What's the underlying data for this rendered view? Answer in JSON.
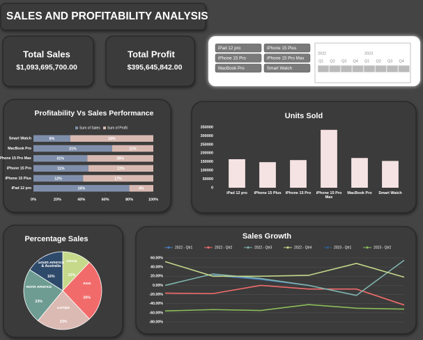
{
  "header": {
    "title": "SALES AND PROFITABILITY ANALYSIS"
  },
  "kpis": [
    {
      "label": "Total Sales",
      "value": "$1,093,695,700.00"
    },
    {
      "label": "Total Profit",
      "value": "$395,645,842.00"
    }
  ],
  "slicers": {
    "products": [
      "iPad 12 pro",
      "iPhone 15 Plus",
      "iPhone 15 Pro",
      "iPhone 15 Pro Max",
      "MacBook Pro",
      "Smart Watch"
    ],
    "timeline": {
      "years": [
        "2022",
        "2023"
      ],
      "quarters": [
        "Q1",
        "Q2",
        "Q3",
        "Q4",
        "Q1",
        "Q2",
        "Q3",
        "Q4"
      ]
    }
  },
  "chart_data": [
    {
      "type": "bar",
      "orientation": "horizontal",
      "stacked": "percent",
      "title": "Profitability Vs Sales Performance",
      "categories": [
        "Smart Watch",
        "MacBook Pro",
        "iPhone 15 Pro Max",
        "iPhone 15 Pro",
        "iPhone 15 Plus",
        "iPad 12 pro"
      ],
      "series": [
        {
          "name": "Sum of Sales",
          "color": "#7f8fab",
          "values": [
            8,
            21,
            31,
            11,
            12,
            16
          ],
          "value_labels": [
            "8%",
            "21%",
            "31%",
            "11%",
            "12%",
            "16%"
          ]
        },
        {
          "name": "Sum of Profit",
          "color": "#d8b9b1",
          "values": [
            18,
            11,
            38,
            13,
            17,
            4
          ],
          "value_labels": [
            "18%",
            "11%",
            "38%",
            "13%",
            "17%",
            "4%"
          ]
        }
      ],
      "xlim": [
        0,
        100
      ],
      "xticks": [
        {
          "value": 0,
          "label": "0%"
        },
        {
          "value": 20,
          "label": "20%"
        },
        {
          "value": 40,
          "label": "40%"
        },
        {
          "value": 60,
          "label": "60%"
        },
        {
          "value": 80,
          "label": "80%"
        },
        {
          "value": 100,
          "label": "100%"
        }
      ],
      "legend": "top"
    },
    {
      "type": "bar",
      "orientation": "vertical",
      "title": "Units Sold",
      "categories": [
        "iPad 12 pro",
        "iPhone 15 Plus",
        "iPhone 15 Pro",
        "iPhone 15 Pro Max",
        "MacBook Pro",
        "Smart Watch"
      ],
      "values": [
        165000,
        148000,
        160000,
        335000,
        172000,
        155000
      ],
      "color": "#f5e3e3",
      "ylim": [
        0,
        350000
      ],
      "yticks": [
        0,
        50000,
        100000,
        150000,
        200000,
        250000,
        300000,
        350000
      ]
    },
    {
      "type": "pie",
      "title": "Percentage Sales",
      "categories": [
        "Africa",
        "Asia",
        "Europe",
        "North America",
        "South America & Australia"
      ],
      "values": [
        12,
        26,
        23,
        23,
        16
      ],
      "value_labels": [
        "12%",
        "26%",
        "23%",
        "23%",
        "16%"
      ],
      "colors": [
        "#c6d98b",
        "#f26b6b",
        "#dcbab4",
        "#6e9c92",
        "#2e4a6b"
      ]
    },
    {
      "type": "line",
      "title": "Sales Growth",
      "categories": [
        null,
        null,
        null,
        null,
        null,
        null
      ],
      "series": [
        {
          "name": "2022 - Qtr1",
          "color": "#4a7fc1",
          "values": [
            null,
            22,
            13,
            0,
            null,
            null
          ]
        },
        {
          "name": "2022 - Qtr2",
          "color": "#f26b6b",
          "values": [
            -17,
            -18,
            0,
            -8,
            -8,
            -43
          ]
        },
        {
          "name": "2022 - Qtr3",
          "color": "#7fb3ad",
          "values": [
            0,
            25,
            15,
            0,
            -22,
            55
          ]
        },
        {
          "name": "2022 - Qtr4",
          "color": "#c6d98b",
          "values": [
            52,
            20,
            20,
            22,
            48,
            18
          ]
        },
        {
          "name": "2023 - Qtr1",
          "color": "#2e5c8a",
          "values": [
            null,
            null,
            null,
            null,
            null,
            null
          ]
        },
        {
          "name": "2023 - Qtr2",
          "color": "#8bbf5a",
          "values": [
            -56,
            -53,
            -55,
            -42,
            -50,
            -52
          ]
        }
      ],
      "ylim": [
        -80,
        60
      ],
      "yticks": [
        {
          "value": 60,
          "label": "60.00%"
        },
        {
          "value": 40,
          "label": "40.00%"
        },
        {
          "value": 20,
          "label": "20.00%"
        },
        {
          "value": 0,
          "label": "0.00%"
        },
        {
          "value": -20,
          "label": "-20.00%"
        },
        {
          "value": -40,
          "label": "-40.00%"
        },
        {
          "value": -60,
          "label": "-60.00%"
        },
        {
          "value": -80,
          "label": "-80.00%"
        }
      ],
      "grid": true,
      "legend": "top"
    }
  ]
}
